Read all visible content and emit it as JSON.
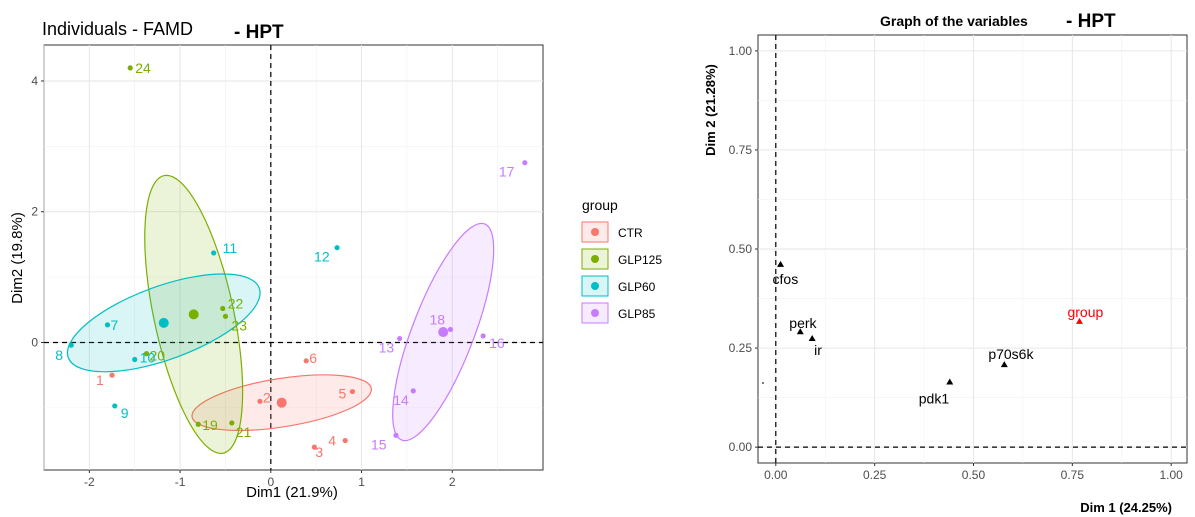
{
  "chart_data": [
    {
      "type": "scatter",
      "title": "Individuals - FAMD",
      "title_suffix": "- HPT",
      "xlabel": "Dim1 (21.9%)",
      "ylabel": "Dim2 (19.8%)",
      "xlim": [
        -2.5,
        3.0
      ],
      "ylim": [
        -1.95,
        4.55
      ],
      "xticks": [
        -2,
        -1,
        0,
        1,
        2
      ],
      "yticks": [
        0,
        2,
        4
      ],
      "grid": true,
      "reference_lines": {
        "x": 0,
        "y": 0
      },
      "legend_title": "group",
      "legend_position": "right",
      "groups": [
        {
          "name": "CTR",
          "color": "#f8766d",
          "center": [
            0.12,
            -0.92
          ],
          "ellipse": {
            "rx": 1.0,
            "ry": 0.37,
            "angle_deg": -9
          },
          "points": [
            {
              "label": "1",
              "x": -1.75,
              "y": -0.5
            },
            {
              "label": "2",
              "x": -0.12,
              "y": -0.9
            },
            {
              "label": "3",
              "x": 0.48,
              "y": -1.6
            },
            {
              "label": "4",
              "x": 0.82,
              "y": -1.5
            },
            {
              "label": "5",
              "x": 0.9,
              "y": -0.75
            },
            {
              "label": "6",
              "x": 0.39,
              "y": -0.28
            }
          ]
        },
        {
          "name": "GLP125",
          "color": "#7cae00",
          "center": [
            -0.85,
            0.43
          ],
          "ellipse": {
            "rx": 0.44,
            "ry": 2.17,
            "angle_deg": -12
          },
          "points": [
            {
              "label": "19",
              "x": -0.8,
              "y": -1.25
            },
            {
              "label": "20",
              "x": -1.37,
              "y": -0.17
            },
            {
              "label": "21",
              "x": -0.43,
              "y": -1.23
            },
            {
              "label": "22",
              "x": -0.53,
              "y": 0.52
            },
            {
              "label": "23",
              "x": -0.5,
              "y": 0.4
            },
            {
              "label": "24",
              "x": -1.55,
              "y": 4.2
            }
          ]
        },
        {
          "name": "GLP60",
          "color": "#00bfc4",
          "center": [
            -1.18,
            0.3
          ],
          "ellipse": {
            "rx": 1.12,
            "ry": 0.56,
            "angle_deg": -20
          },
          "points": [
            {
              "label": "7",
              "x": -1.8,
              "y": 0.27
            },
            {
              "label": "8",
              "x": -2.2,
              "y": -0.04
            },
            {
              "label": "9",
              "x": -1.72,
              "y": -0.97
            },
            {
              "label": "10",
              "x": -1.5,
              "y": -0.26
            },
            {
              "label": "11",
              "x": -0.63,
              "y": 1.37
            },
            {
              "label": "12",
              "x": 0.73,
              "y": 1.45
            }
          ]
        },
        {
          "name": "GLP85",
          "color": "#c77cff",
          "center": [
            1.9,
            0.16
          ],
          "ellipse": {
            "rx": 0.34,
            "ry": 1.77,
            "angle_deg": 21
          },
          "points": [
            {
              "label": "13",
              "x": 1.42,
              "y": 0.06
            },
            {
              "label": "14",
              "x": 1.57,
              "y": -0.74
            },
            {
              "label": "15",
              "x": 1.38,
              "y": -1.42
            },
            {
              "label": "16",
              "x": 2.34,
              "y": 0.1
            },
            {
              "label": "17",
              "x": 2.8,
              "y": 2.75
            },
            {
              "label": "18",
              "x": 1.98,
              "y": 0.2
            }
          ]
        }
      ]
    },
    {
      "type": "scatter",
      "title": "Graph of the variables",
      "title_suffix": "- HPT",
      "xlabel": "Dim 1 (24.25%)",
      "ylabel": "Dim 2 (21.28%)",
      "xlim": [
        -0.045,
        1.04
      ],
      "ylim": [
        -0.04,
        1.04
      ],
      "xticks": [
        0.0,
        0.25,
        0.5,
        0.75,
        1.0
      ],
      "yticks": [
        0.0,
        0.25,
        0.5,
        0.75,
        1.0
      ],
      "xtick_labels": [
        "0.00",
        "0.25",
        "0.50",
        "0.75",
        "1.00"
      ],
      "ytick_labels": [
        "0.00",
        "0.25",
        "0.50",
        "0.75",
        "1.00"
      ],
      "grid": true,
      "reference_lines": {
        "x": 0,
        "y": 0
      },
      "points": [
        {
          "label": "cfos",
          "x": 0.012,
          "y": 0.46,
          "color": "#000000"
        },
        {
          "label": "perk",
          "x": 0.062,
          "y": 0.29,
          "color": "#000000"
        },
        {
          "label": "ir",
          "x": 0.092,
          "y": 0.273,
          "color": "#000000"
        },
        {
          "label": "pdk1",
          "x": 0.44,
          "y": 0.163,
          "color": "#000000"
        },
        {
          "label": "p70s6k",
          "x": 0.578,
          "y": 0.207,
          "color": "#000000"
        },
        {
          "label": "group",
          "x": 0.768,
          "y": 0.316,
          "color": "#ff0000"
        }
      ]
    }
  ]
}
